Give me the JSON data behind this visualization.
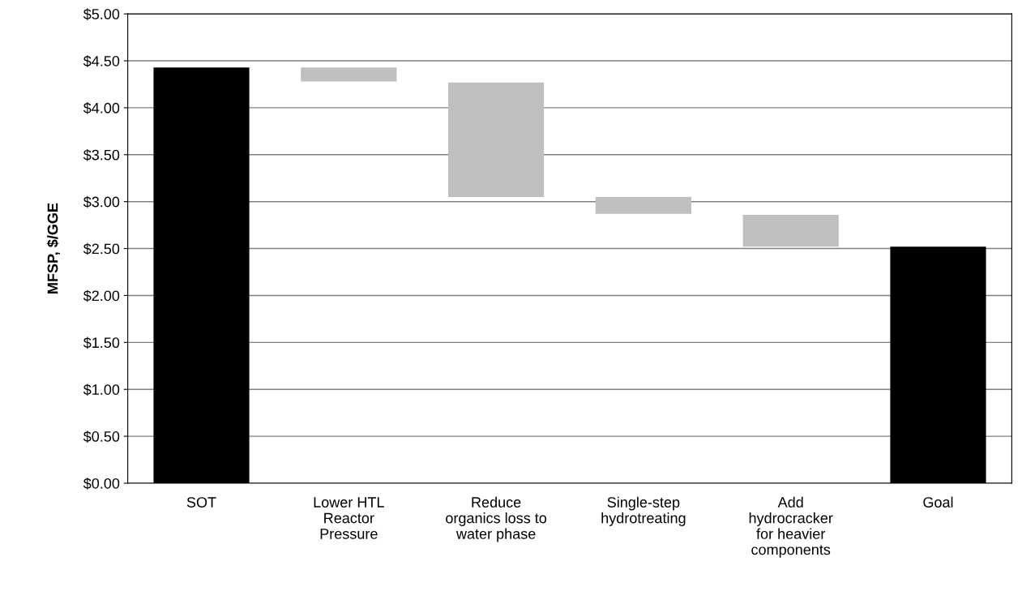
{
  "chart_data": {
    "type": "bar",
    "ylabel": "MFSP, $/GGE",
    "categories": [
      "SOT",
      "Lower HTL\nReactor\nPressure",
      "Reduce\norganics loss to\nwater phase",
      "Single-step\nhydrotreating",
      "Add\nhydrocracker\nfor heavier\ncomponents",
      "Goal"
    ],
    "values": [
      4.43,
      0.15,
      1.22,
      0.18,
      0.34,
      2.52
    ],
    "base": [
      0,
      4.28,
      3.05,
      2.87,
      2.52,
      0
    ],
    "colors": [
      "#000000",
      "#bfbfbf",
      "#bfbfbf",
      "#bfbfbf",
      "#bfbfbf",
      "#000000"
    ],
    "ylim": [
      0,
      5
    ],
    "yticks": [
      {
        "value": 0,
        "label": "$0.00"
      },
      {
        "value": 0.5,
        "label": "$0.50"
      },
      {
        "value": 1,
        "label": "$1.00"
      },
      {
        "value": 1.5,
        "label": "$1.50"
      },
      {
        "value": 2,
        "label": "$2.00"
      },
      {
        "value": 2.5,
        "label": "$2.50"
      },
      {
        "value": 3,
        "label": "$3.00"
      },
      {
        "value": 3.5,
        "label": "$3.50"
      },
      {
        "value": 4,
        "label": "$4.00"
      },
      {
        "value": 4.5,
        "label": "$4.50"
      },
      {
        "value": 5,
        "label": "$5.00"
      }
    ],
    "grid": "y",
    "legend": false
  }
}
